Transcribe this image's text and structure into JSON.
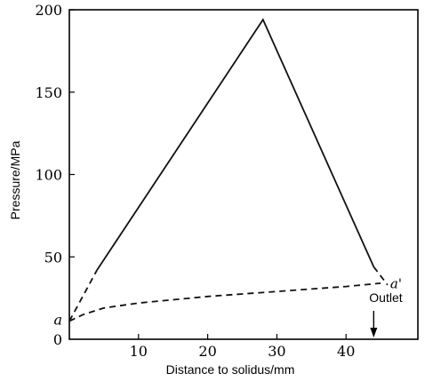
{
  "chart_data": {
    "type": "line",
    "xlabel": "Distance to solidus/mm",
    "ylabel": "Pressure/MPa",
    "xlim": [
      0,
      52
    ],
    "ylim": [
      0,
      200
    ],
    "x_ticks": [
      10,
      20,
      30,
      40
    ],
    "y_ticks": [
      0,
      50,
      100,
      150,
      200
    ],
    "grid": false,
    "series": [
      {
        "style": "solid",
        "x": [
          4,
          28,
          44
        ],
        "y": [
          42,
          194,
          44
        ]
      },
      {
        "style": "dashed",
        "x": [
          0,
          4
        ],
        "y": [
          11,
          42
        ]
      },
      {
        "style": "dashed",
        "x": [
          44,
          46
        ],
        "y": [
          44,
          33
        ]
      },
      {
        "style": "dashed",
        "x": [
          0,
          2,
          5,
          10,
          15,
          20,
          25,
          30,
          35,
          40,
          45
        ],
        "y": [
          11,
          15,
          19,
          22,
          24,
          26,
          27.5,
          29,
          30.5,
          32,
          34
        ]
      }
    ],
    "annotations": [
      {
        "text": "a",
        "x": 0,
        "y": 11
      },
      {
        "text": "a'",
        "x": 46,
        "y": 31
      },
      {
        "text": "Outlet",
        "x": 45.5,
        "y": 21
      }
    ],
    "colors": {
      "line": "#111111",
      "axis": "#000000"
    }
  }
}
